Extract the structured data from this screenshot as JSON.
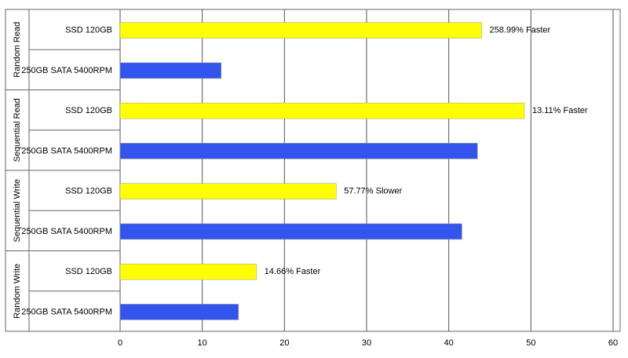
{
  "chart_data": {
    "type": "hbar-grouped",
    "groups": [
      "Random Read",
      "Sequential Read",
      "Sequential Write",
      "Random Write"
    ],
    "series": [
      {
        "name": "SSD 120GB",
        "color": "#ffff00",
        "values": [
          44.0,
          49.2,
          26.3,
          16.6
        ]
      },
      {
        "name": "250GB SATA 5400RPM",
        "color": "#3355ee",
        "values": [
          12.3,
          43.5,
          41.6,
          14.4
        ]
      }
    ],
    "annotations": [
      "258.99% Faster",
      "13.11% Faster",
      "57.77% Slower",
      "14.66% Faster"
    ],
    "xlim": [
      0,
      60
    ],
    "xticks": [
      0,
      10,
      20,
      30,
      40,
      50,
      60
    ],
    "grid": true
  }
}
